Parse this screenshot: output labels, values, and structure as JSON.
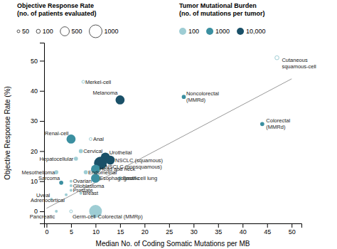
{
  "chart_data": {
    "type": "scatter",
    "xlabel": "Median No. of Coding Somatic Mutations per MB",
    "ylabel": "Objective Response Rate (%)",
    "xlim": [
      -0.5,
      52
    ],
    "ylim": [
      -4,
      56
    ],
    "xticks": [
      0,
      5,
      10,
      15,
      20,
      25,
      30,
      35,
      40,
      45,
      50
    ],
    "yticks": [
      0,
      10,
      20,
      30,
      40,
      50
    ],
    "grid": false,
    "labels": [
      "Cutaneous\nsquamous-cell",
      "Merkel-cell",
      "Melanoma",
      "Noncolorectal\n(MMRd)",
      "Colorectal\n(MMRd)",
      "Renal-cell",
      "Anal",
      "Cervical",
      "Hepatocellular",
      "Urothelial",
      "NSCLC (squamous)",
      "NSCLC (nonsquamous)",
      "Head and neck",
      "Endometrial",
      "Mesothelioma",
      "Sarcoma",
      "Ovarian",
      "Glioblastoma",
      "Prostate",
      "Adrenocortical",
      "Breast",
      "Esophagogastric",
      "Small-cell lung",
      "Uveal",
      "Pancreatic",
      "Germ-cell",
      "Colorectal (MMRp)"
    ],
    "x": [
      47,
      7.5,
      15,
      28,
      44,
      5,
      9,
      7,
      6,
      12,
      13,
      11,
      10,
      8,
      2,
      3,
      5,
      5,
      5,
      4,
      7,
      10,
      15,
      1,
      2,
      5,
      10
    ],
    "values": [
      51,
      43,
      37,
      38,
      29,
      24,
      24,
      20,
      17.5,
      18,
      17,
      16,
      14,
      13,
      13,
      9.5,
      10,
      8.5,
      7,
      5.5,
      6,
      11,
      11,
      4,
      0,
      0,
      0
    ],
    "size": [
      100,
      50,
      500,
      100,
      100,
      500,
      50,
      100,
      100,
      500,
      500,
      1000,
      500,
      100,
      100,
      100,
      50,
      50,
      50,
      50,
      50,
      500,
      100,
      50,
      50,
      50,
      1000
    ],
    "tmb": [
      100,
      100,
      10000,
      1000,
      1000,
      1000,
      100,
      100,
      100,
      10000,
      10000,
      10000,
      1000,
      100,
      100,
      1000,
      100,
      100,
      100,
      100,
      100,
      1000,
      100,
      100,
      100,
      100,
      100
    ],
    "open": [
      true,
      true,
      false,
      false,
      false,
      false,
      true,
      false,
      false,
      false,
      false,
      false,
      false,
      false,
      false,
      false,
      false,
      false,
      false,
      false,
      false,
      false,
      false,
      false,
      false,
      true,
      false
    ],
    "trendline": {
      "x": [
        0,
        50
      ],
      "values": [
        1,
        44
      ],
      "color": "#999999"
    },
    "size_legend": {
      "title": "Objective Response Rate\n(no. of patients evaluated)",
      "values": [
        50,
        100,
        500,
        1000
      ]
    },
    "color_legend": {
      "title": "Tumor Mutational Burden\n(no. of mutations per tumor)",
      "values": [
        100,
        1000,
        {
          "value": 10000,
          "label": "10,000"
        }
      ],
      "colors": [
        "#9ecdd4",
        "#3b8fa0",
        "#1a5068"
      ]
    }
  }
}
